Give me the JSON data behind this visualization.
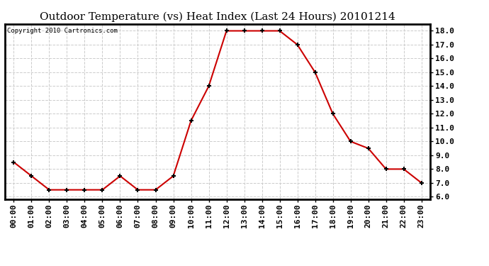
{
  "title": "Outdoor Temperature (vs) Heat Index (Last 24 Hours) 20101214",
  "copyright_text": "Copyright 2010 Cartronics.com",
  "x_labels": [
    "00:00",
    "01:00",
    "02:00",
    "03:00",
    "04:00",
    "05:00",
    "06:00",
    "07:00",
    "08:00",
    "09:00",
    "10:00",
    "11:00",
    "12:00",
    "13:00",
    "14:00",
    "15:00",
    "16:00",
    "17:00",
    "18:00",
    "19:00",
    "20:00",
    "21:00",
    "22:00",
    "23:00"
  ],
  "y_values": [
    8.5,
    7.5,
    6.5,
    6.5,
    6.5,
    6.5,
    7.5,
    6.5,
    6.5,
    7.5,
    11.5,
    14.0,
    18.0,
    18.0,
    18.0,
    18.0,
    17.0,
    15.0,
    12.0,
    10.0,
    9.5,
    8.0,
    8.0,
    7.0
  ],
  "line_color": "#cc0000",
  "marker": "+",
  "marker_color": "#000000",
  "marker_size": 5,
  "line_width": 1.5,
  "ylim": [
    5.8,
    18.5
  ],
  "yticks": [
    6.0,
    7.0,
    8.0,
    9.0,
    10.0,
    11.0,
    12.0,
    13.0,
    14.0,
    15.0,
    16.0,
    17.0,
    18.0
  ],
  "background_color": "#ffffff",
  "grid_color": "#cccccc",
  "title_fontsize": 11,
  "tick_fontsize": 8,
  "copyright_fontsize": 6.5
}
